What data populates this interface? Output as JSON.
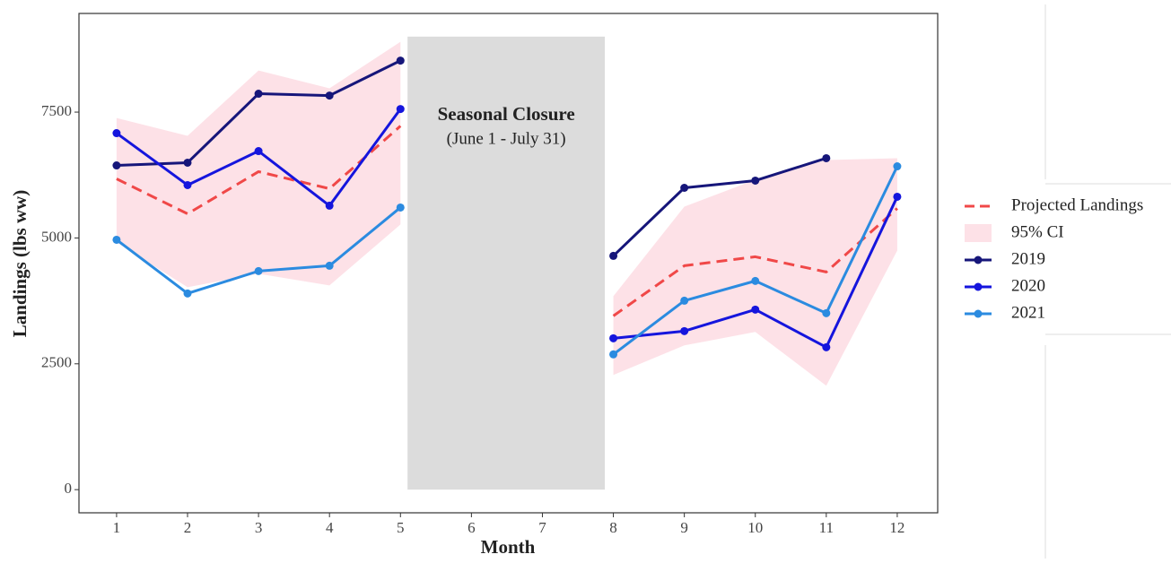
{
  "chart_data": {
    "type": "line",
    "xlabel": "Month",
    "ylabel": "Landings (lbs ww)",
    "x": [
      1,
      2,
      3,
      4,
      5,
      6,
      7,
      8,
      9,
      10,
      11,
      12
    ],
    "xlim": [
      0.47,
      12.57
    ],
    "xticks": [
      1,
      2,
      3,
      4,
      5,
      6,
      7,
      8,
      9,
      10,
      11,
      12
    ],
    "ylim": [
      -460,
      9460
    ],
    "yticks": [
      0,
      2500,
      5000,
      7500
    ],
    "ci": {
      "name": "95% CI",
      "color": "#fde1e7",
      "upper": [
        7384,
        7028,
        8327,
        7972,
        8897,
        null,
        null,
        3843,
        5623,
        6157,
        6548,
        6584
      ],
      "lower": [
        4911,
        4021,
        4288,
        4057,
        5267,
        null,
        null,
        2278,
        2865,
        3132,
        2064,
        4750
      ]
    },
    "series": [
      {
        "name": "Projected Landings",
        "color": "#f04848",
        "dashed": true,
        "markers": false,
        "values": [
          6174,
          5480,
          6317,
          5979,
          7224,
          null,
          null,
          3452,
          4448,
          4626,
          4324,
          5587
        ]
      },
      {
        "name": "2019",
        "color": "#16167a",
        "dashed": false,
        "markers": true,
        "values": [
          6441,
          6495,
          7865,
          7829,
          8523,
          null,
          null,
          4644,
          5996,
          6139,
          6584,
          null
        ]
      },
      {
        "name": "2020",
        "color": "#1515dd",
        "dashed": false,
        "markers": true,
        "values": [
          7082,
          6050,
          6726,
          5641,
          7562,
          null,
          null,
          3007,
          3149,
          3577,
          2829,
          5819
        ]
      },
      {
        "name": "2021",
        "color": "#2b8be0",
        "dashed": false,
        "markers": true,
        "values": [
          4964,
          3897,
          4342,
          4448,
          5605,
          null,
          null,
          2687,
          3754,
          4146,
          3505,
          6423
        ]
      }
    ],
    "closure": {
      "label": "Seasonal Closure",
      "sublabel": "(June 1 - July 31)",
      "color": "#dcdcdc",
      "x": [
        5.1,
        7.88
      ],
      "y": [
        0,
        9000
      ]
    }
  }
}
